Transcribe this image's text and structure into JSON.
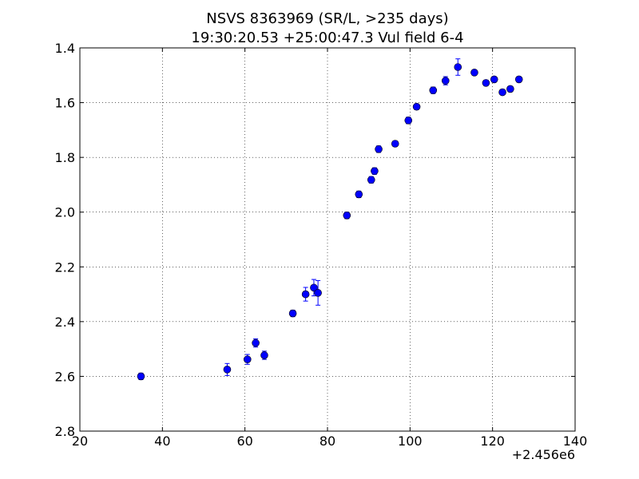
{
  "chart_data": {
    "type": "scatter",
    "title": [
      "NSVS 8363969 (SR/L, >235 days)",
      "19:30:20.53 +25:00:47.3 Vul field 6-4"
    ],
    "x_offset_label": "+2.456e6",
    "xlim": [
      20,
      140
    ],
    "ylim": [
      2.8,
      1.4
    ],
    "y_inverted": true,
    "grid": true,
    "x_ticks": [
      "20",
      "40",
      "60",
      "80",
      "100",
      "120",
      "140"
    ],
    "y_ticks": [
      "1.4",
      "1.6",
      "1.8",
      "2.0",
      "2.2",
      "2.4",
      "2.6",
      "2.8"
    ],
    "marker_color": "#0000ff",
    "series": [
      {
        "points": [
          {
            "x": 34.8,
            "y": 2.6,
            "err": 0.012
          },
          {
            "x": 55.7,
            "y": 2.575,
            "err": 0.022
          },
          {
            "x": 60.6,
            "y": 2.538,
            "err": 0.018
          },
          {
            "x": 62.6,
            "y": 2.478,
            "err": 0.015
          },
          {
            "x": 64.7,
            "y": 2.523,
            "err": 0.015
          },
          {
            "x": 71.6,
            "y": 2.37,
            "err": 0.012
          },
          {
            "x": 74.7,
            "y": 2.3,
            "err": 0.025
          },
          {
            "x": 76.7,
            "y": 2.276,
            "err": 0.03
          },
          {
            "x": 77.7,
            "y": 2.295,
            "err": 0.045
          },
          {
            "x": 84.7,
            "y": 2.012,
            "err": 0.012
          },
          {
            "x": 87.6,
            "y": 1.935,
            "err": 0.012
          },
          {
            "x": 90.6,
            "y": 1.882,
            "err": 0.012
          },
          {
            "x": 91.4,
            "y": 1.85,
            "err": 0.012
          },
          {
            "x": 92.4,
            "y": 1.77,
            "err": 0.012
          },
          {
            "x": 96.4,
            "y": 1.75,
            "err": 0.01
          },
          {
            "x": 99.6,
            "y": 1.665,
            "err": 0.012
          },
          {
            "x": 101.6,
            "y": 1.615,
            "err": 0.01
          },
          {
            "x": 105.6,
            "y": 1.555,
            "err": 0.012
          },
          {
            "x": 108.6,
            "y": 1.52,
            "err": 0.015
          },
          {
            "x": 111.6,
            "y": 1.47,
            "err": 0.03
          },
          {
            "x": 115.6,
            "y": 1.49,
            "err": 0.01
          },
          {
            "x": 118.4,
            "y": 1.528,
            "err": 0.01
          },
          {
            "x": 120.4,
            "y": 1.515,
            "err": 0.01
          },
          {
            "x": 122.4,
            "y": 1.562,
            "err": 0.01
          },
          {
            "x": 124.3,
            "y": 1.55,
            "err": 0.01
          },
          {
            "x": 126.4,
            "y": 1.515,
            "err": 0.01
          }
        ]
      }
    ]
  }
}
